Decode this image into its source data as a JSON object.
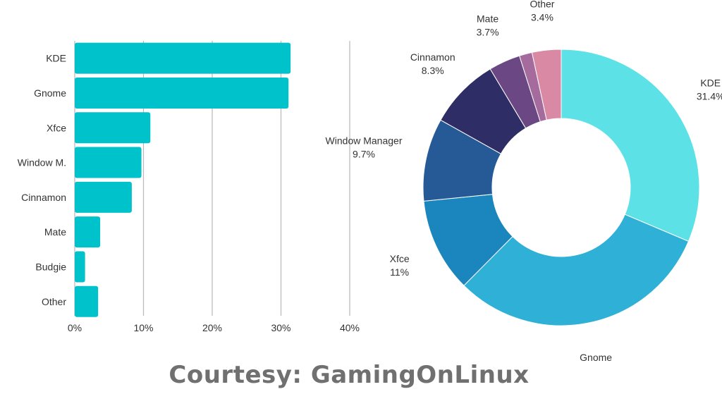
{
  "chart_data": [
    {
      "type": "bar",
      "orientation": "horizontal",
      "categories": [
        "KDE",
        "Gnome",
        "Xfce",
        "Window M.",
        "Cinnamon",
        "Mate",
        "Budgie",
        "Other"
      ],
      "values": [
        31.4,
        31.1,
        11,
        9.7,
        8.3,
        3.7,
        1.5,
        3.4
      ],
      "xlim": [
        0,
        40
      ],
      "xticks": [
        "0%",
        "10%",
        "20%",
        "30%",
        "40%"
      ],
      "grid": true,
      "color": "#00C2CB"
    },
    {
      "type": "pie",
      "donut": true,
      "slices": [
        {
          "label": "KDE",
          "pct": "31.4%",
          "value": 31.4,
          "color": "#5CE1E6"
        },
        {
          "label": "Gnome",
          "pct": "31.1%",
          "value": 31.1,
          "color": "#2FB0D6"
        },
        {
          "label": "Xfce",
          "pct": "11%",
          "value": 11,
          "color": "#1A86BD"
        },
        {
          "label": "Window Manager",
          "pct": "9.7%",
          "value": 9.7,
          "color": "#265A96"
        },
        {
          "label": "Cinnamon",
          "pct": "8.3%",
          "value": 8.3,
          "color": "#2E2D66"
        },
        {
          "label": "Mate",
          "pct": "3.7%",
          "value": 3.7,
          "color": "#6B4884"
        },
        {
          "label": "",
          "pct": "",
          "value": 1.5,
          "color": "#A56B9C"
        },
        {
          "label": "Other",
          "pct": "3.4%",
          "value": 3.4,
          "color": "#D989A4"
        }
      ]
    }
  ],
  "courtesy": "Courtesy: GamingOnLinux"
}
